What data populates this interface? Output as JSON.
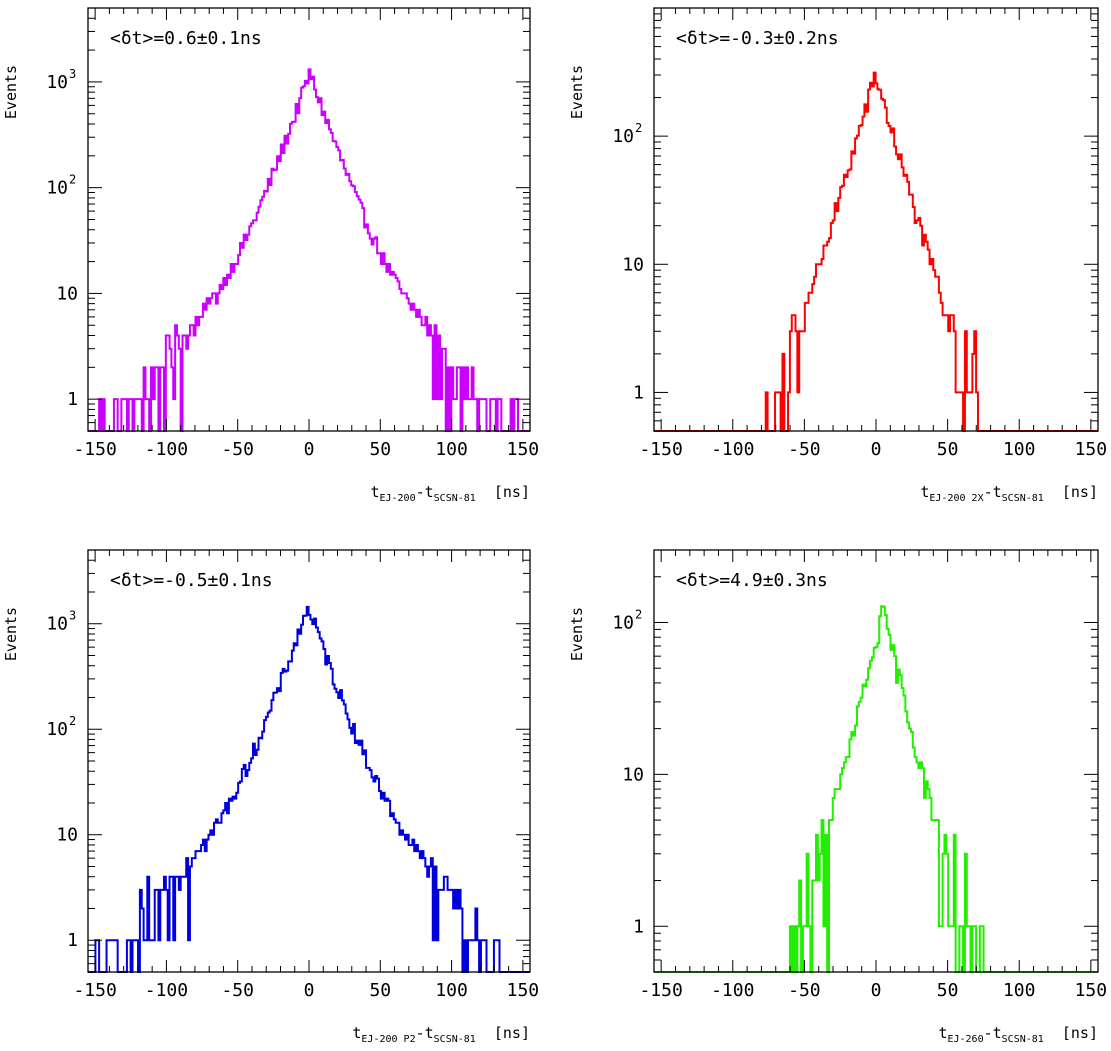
{
  "chart_data": [
    {
      "type": "histogram",
      "panel": "top-left",
      "annotation": "<δt>=0.6±0.1ns",
      "ylabel": "Events",
      "xlabel_parts": [
        {
          "t": "t"
        },
        {
          "t": "EJ-200",
          "sub": true
        },
        {
          "t": "-t"
        },
        {
          "t": "SCSN-81",
          "sub": true
        },
        {
          "t": "  [ns]"
        }
      ],
      "xlim": [
        -155,
        155
      ],
      "ylim": [
        0.5,
        5000
      ],
      "yscale": "log",
      "x_ticks": [
        "-150",
        "-100",
        "-50",
        "0",
        "50",
        "100",
        "150"
      ],
      "y_ticks": [
        {
          "base": "1",
          "exp": ""
        },
        {
          "base": "10",
          "exp": ""
        },
        {
          "base": "10",
          "exp": "2"
        },
        {
          "base": "10",
          "exp": "3"
        }
      ],
      "color": "#cc00ff",
      "peak_center": 0.6,
      "peak_height": 1150,
      "core_width": 11,
      "tail_width": 30,
      "tail_amplitude": 60,
      "events_range": [
        -150,
        150
      ]
    },
    {
      "type": "histogram",
      "panel": "top-right",
      "annotation": "<δt>=-0.3±0.2ns",
      "ylabel": "Events",
      "xlabel_parts": [
        {
          "t": "t"
        },
        {
          "t": "EJ-200 2X",
          "sub": true
        },
        {
          "t": "-t"
        },
        {
          "t": "SCSN-81",
          "sub": true
        },
        {
          "t": "  [ns]"
        }
      ],
      "xlim": [
        -155,
        155
      ],
      "ylim": [
        0.5,
        1000
      ],
      "yscale": "log",
      "x_ticks": [
        "-150",
        "-100",
        "-50",
        "0",
        "50",
        "100",
        "150"
      ],
      "y_ticks": [
        {
          "base": "1",
          "exp": ""
        },
        {
          "base": "10",
          "exp": ""
        },
        {
          "base": "10",
          "exp": "2"
        }
      ],
      "color": "#ff0000",
      "peak_center": -0.3,
      "peak_height": 290,
      "core_width": 11,
      "tail_width": 18,
      "tail_amplitude": 12,
      "events_range": [
        -115,
        108
      ]
    },
    {
      "type": "histogram",
      "panel": "bottom-left",
      "annotation": "<δt>=-0.5±0.1ns",
      "ylabel": "Events",
      "xlabel_parts": [
        {
          "t": "t"
        },
        {
          "t": "EJ-200 P2",
          "sub": true
        },
        {
          "t": "-t"
        },
        {
          "t": "SCSN-81",
          "sub": true
        },
        {
          "t": "  [ns]"
        }
      ],
      "xlim": [
        -155,
        155
      ],
      "ylim": [
        0.5,
        5000
      ],
      "yscale": "log",
      "x_ticks": [
        "-150",
        "-100",
        "-50",
        "0",
        "50",
        "100",
        "150"
      ],
      "y_ticks": [
        {
          "base": "1",
          "exp": ""
        },
        {
          "base": "10",
          "exp": ""
        },
        {
          "base": "10",
          "exp": "2"
        },
        {
          "base": "10",
          "exp": "3"
        }
      ],
      "color": "#0000dd",
      "peak_center": -0.5,
      "peak_height": 1380,
      "core_width": 11,
      "tail_width": 30,
      "tail_amplitude": 70,
      "events_range": [
        -150,
        135
      ]
    },
    {
      "type": "histogram",
      "panel": "bottom-right",
      "annotation": "<δt>=4.9±0.3ns",
      "ylabel": "Events",
      "xlabel_parts": [
        {
          "t": "t"
        },
        {
          "t": "EJ-260",
          "sub": true
        },
        {
          "t": "-t"
        },
        {
          "t": "SCSN-81",
          "sub": true
        },
        {
          "t": "  [ns]"
        }
      ],
      "xlim": [
        -155,
        155
      ],
      "ylim": [
        0.5,
        300
      ],
      "yscale": "log",
      "x_ticks": [
        "-150",
        "-100",
        "-50",
        "0",
        "50",
        "100",
        "150"
      ],
      "y_ticks": [
        {
          "base": "1",
          "exp": ""
        },
        {
          "base": "10",
          "exp": ""
        },
        {
          "base": "10",
          "exp": "2"
        }
      ],
      "color": "#22ee00",
      "peak_center": 4.9,
      "peak_height": 110,
      "core_width": 11,
      "tail_width": 18,
      "tail_amplitude": 6,
      "events_range": [
        -148,
        110
      ]
    }
  ]
}
